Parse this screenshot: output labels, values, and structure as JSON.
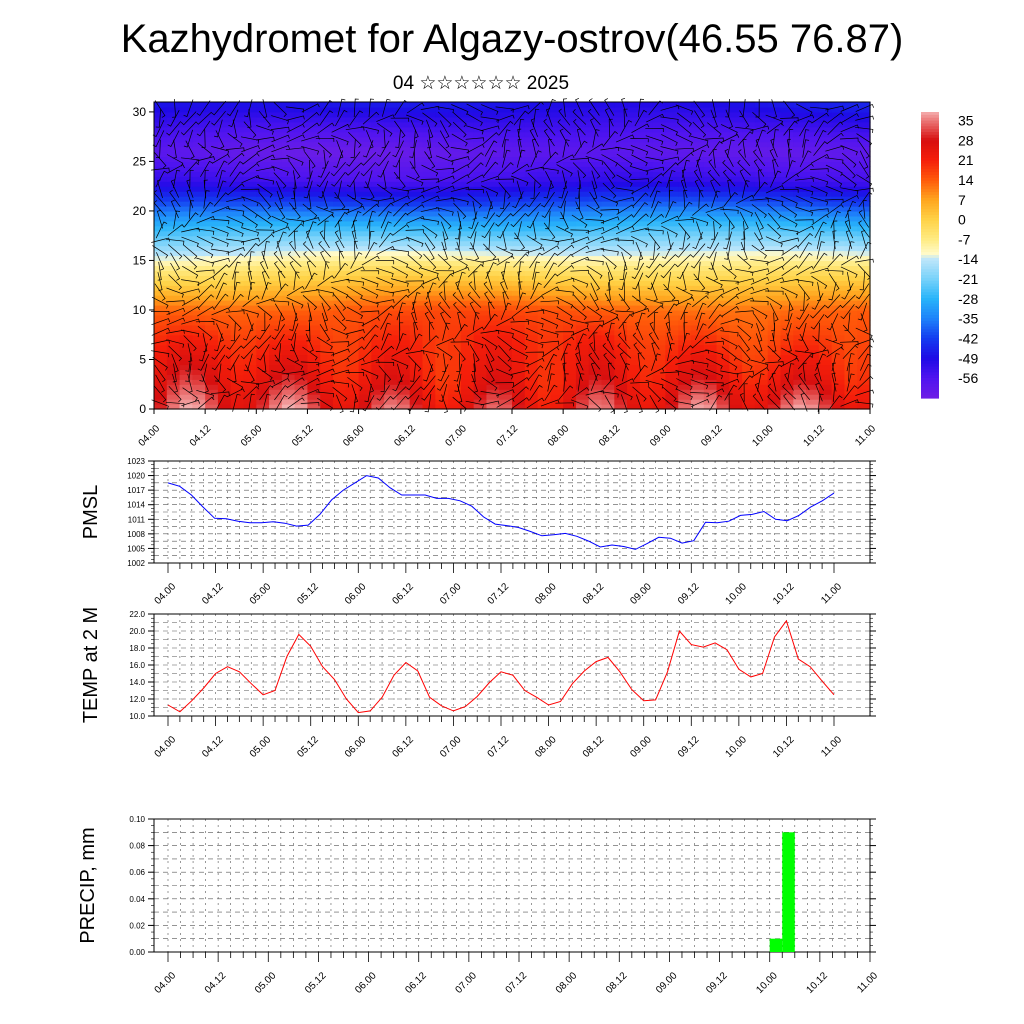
{
  "header": {
    "title": "Kazhydromet for Algazy-ostrov(46.55 76.87)",
    "subtitle": "04 ☆☆☆☆☆☆ 2025"
  },
  "chart_data": [
    {
      "type": "heatmap",
      "name": "cross-section",
      "x_ticks": [
        "04.00",
        "04.12",
        "05.00",
        "05.12",
        "06.00",
        "06.12",
        "07.00",
        "07.12",
        "08.00",
        "08.12",
        "09.00",
        "09.12",
        "10.00",
        "10.12",
        "11.00"
      ],
      "y_ticks": [
        "0",
        "5",
        "10",
        "15",
        "20",
        "25",
        "30"
      ],
      "ylim": [
        0,
        31
      ],
      "colorbar_labels": [
        "35",
        "28",
        "21",
        "14",
        "7",
        "0",
        "-7",
        "-14",
        "-21",
        "-28",
        "-35",
        "-42",
        "-49",
        "-56"
      ],
      "colorbar_range": [
        -63,
        38
      ],
      "temperature_profile": [
        {
          "level": 0,
          "value": 30
        },
        {
          "level": 3,
          "value": 24
        },
        {
          "level": 7,
          "value": 19
        },
        {
          "level": 10,
          "value": 14
        },
        {
          "level": 12,
          "value": 5
        },
        {
          "level": 14,
          "value": -4
        },
        {
          "level": 15.5,
          "value": -12
        },
        {
          "level": 17,
          "value": -20
        },
        {
          "level": 19,
          "value": -30
        },
        {
          "level": 21,
          "value": -42
        },
        {
          "level": 23,
          "value": -53
        },
        {
          "level": 26,
          "value": -60
        },
        {
          "level": 28,
          "value": -55
        },
        {
          "level": 31,
          "value": -47
        }
      ]
    },
    {
      "type": "line",
      "name": "pmsl",
      "ylabel": "PMSL",
      "yticks": [
        1002,
        1005,
        1008,
        1011,
        1014,
        1017,
        1020,
        1023
      ],
      "ylim": [
        1002,
        1023
      ],
      "x_ticks": [
        "04.00",
        "04.12",
        "05.00",
        "05.12",
        "06.00",
        "06.12",
        "07.00",
        "07.12",
        "08.00",
        "08.12",
        "09.00",
        "09.12",
        "10.00",
        "10.12",
        "11.00"
      ],
      "color": "#0000ff",
      "values": [
        1018.5,
        1017.8,
        1016.0,
        1013.5,
        1011.2,
        1011.1,
        1010.6,
        1010.3,
        1010.3,
        1010.5,
        1010.2,
        1009.6,
        1009.8,
        1012.0,
        1015.0,
        1017.0,
        1018.5,
        1020.0,
        1019.5,
        1017.5,
        1016.0,
        1016.0,
        1016.0,
        1015.3,
        1015.3,
        1014.8,
        1013.7,
        1011.5,
        1010.0,
        1009.7,
        1009.3,
        1008.5,
        1007.6,
        1007.8,
        1008.1,
        1007.5,
        1006.5,
        1005.3,
        1005.7,
        1005.4,
        1004.8,
        1006.0,
        1007.3,
        1007.1,
        1006.1,
        1006.6,
        1010.4,
        1010.3,
        1010.6,
        1011.8,
        1012.0,
        1012.6,
        1011.0,
        1010.7,
        1011.8,
        1013.5,
        1014.8,
        1016.4
      ]
    },
    {
      "type": "line",
      "name": "temp2m",
      "ylabel": "TEMP at 2 M",
      "yticks": [
        "10.0",
        "12.0",
        "14.0",
        "16.0",
        "18.0",
        "20.0",
        "22.0"
      ],
      "ylim": [
        10,
        22
      ],
      "x_ticks": [
        "04.00",
        "04.12",
        "05.00",
        "05.12",
        "06.00",
        "06.12",
        "07.00",
        "07.12",
        "08.00",
        "08.12",
        "09.00",
        "09.12",
        "10.00",
        "10.12",
        "11.00"
      ],
      "color": "#ff0000",
      "values": [
        11.3,
        10.5,
        11.8,
        13.3,
        15.0,
        15.8,
        15.2,
        13.8,
        12.5,
        13.0,
        17.0,
        19.6,
        18.2,
        15.8,
        14.3,
        12.0,
        10.4,
        10.6,
        12.2,
        14.8,
        16.3,
        15.3,
        12.2,
        11.2,
        10.6,
        11.1,
        12.3,
        13.9,
        15.2,
        14.8,
        13.0,
        12.2,
        11.3,
        11.7,
        13.8,
        15.3,
        16.4,
        16.9,
        15.2,
        13.1,
        11.8,
        11.9,
        15.2,
        20.0,
        18.4,
        18.1,
        18.6,
        17.8,
        15.5,
        14.6,
        15.0,
        19.3,
        21.2,
        16.7,
        15.8,
        14.1,
        12.5
      ]
    },
    {
      "type": "bar",
      "name": "precip",
      "ylabel": "PRECIP, mm",
      "yticks": [
        "0.00",
        "0.02",
        "0.04",
        "0.06",
        "0.08",
        "0.10"
      ],
      "ylim": [
        0,
        0.1
      ],
      "x_ticks": [
        "04.00",
        "04.12",
        "05.00",
        "05.12",
        "06.00",
        "06.12",
        "07.00",
        "07.12",
        "08.00",
        "08.12",
        "09.00",
        "09.12",
        "10.00",
        "10.12",
        "11.00"
      ],
      "color": "#00ff00",
      "bars": [
        {
          "start_hour": 144,
          "end_hour": 147,
          "value": 0.01
        },
        {
          "start_hour": 147,
          "end_hour": 150,
          "value": 0.09
        }
      ]
    }
  ]
}
